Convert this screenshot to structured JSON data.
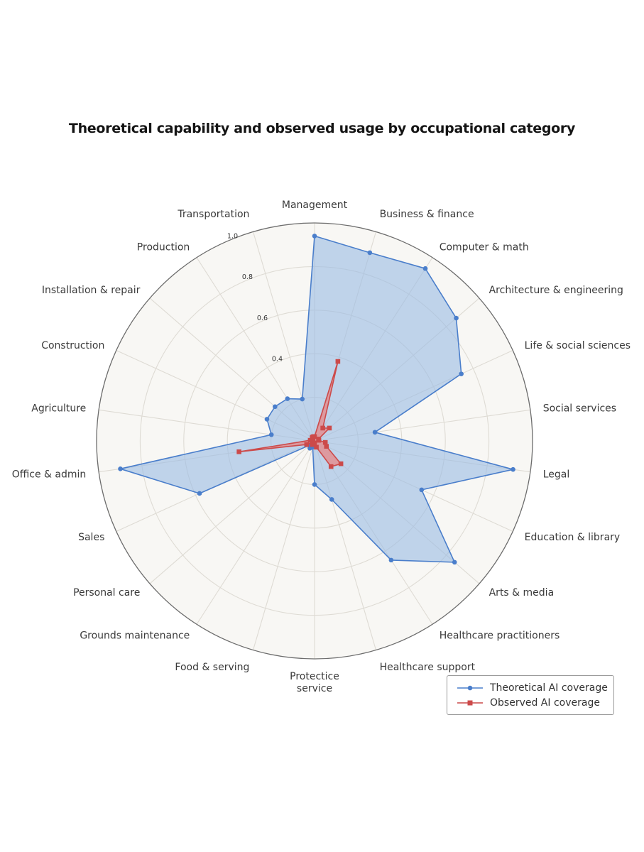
{
  "chart_data": {
    "type": "radar",
    "title": "Theoretical capability and observed usage by occupational category",
    "categories": [
      "Management",
      "Business & finance",
      "Computer & math",
      "Architecture & engineering",
      "Life & social sciences",
      "Social services",
      "Legal",
      "Education & library",
      "Arts & media",
      "Healthcare practitioners",
      "Healthcare support",
      "Protectice service",
      "Food & serving",
      "Grounds maintenance",
      "Personal care",
      "Sales",
      "Office & admin",
      "Agriculture",
      "Construction",
      "Installation & repair",
      "Production",
      "Transportation"
    ],
    "radial_ticks": [
      "0.4",
      "0.6",
      "0.8",
      "1.0"
    ],
    "rlim": [
      0,
      1.0
    ],
    "grid": true,
    "legend_position": "bottom-right",
    "series": [
      {
        "name": "Theoretical AI coverage",
        "color": "#4a7ecb",
        "fill": "#9dbde3",
        "marker": "circle",
        "values": [
          0.94,
          0.9,
          0.94,
          0.86,
          0.74,
          0.28,
          0.92,
          0.54,
          0.85,
          0.65,
          0.28,
          0.2,
          0.03,
          0.04,
          0.03,
          0.58,
          0.9,
          0.2,
          0.24,
          0.24,
          0.23,
          0.2
        ]
      },
      {
        "name": "Observed AI coverage",
        "color": "#cc4a4a",
        "fill": "#e58b8a",
        "marker": "square",
        "values": [
          0.02,
          0.38,
          0.07,
          0.09,
          0.02,
          0.02,
          0.05,
          0.06,
          0.16,
          0.14,
          0.03,
          0.01,
          0.01,
          0.02,
          0.01,
          0.04,
          0.35,
          0.02,
          0.01,
          0.01,
          0.02,
          0.02
        ]
      }
    ]
  },
  "legend": {
    "items": [
      {
        "label": "Theoretical AI coverage"
      },
      {
        "label": "Observed AI coverage"
      }
    ]
  }
}
